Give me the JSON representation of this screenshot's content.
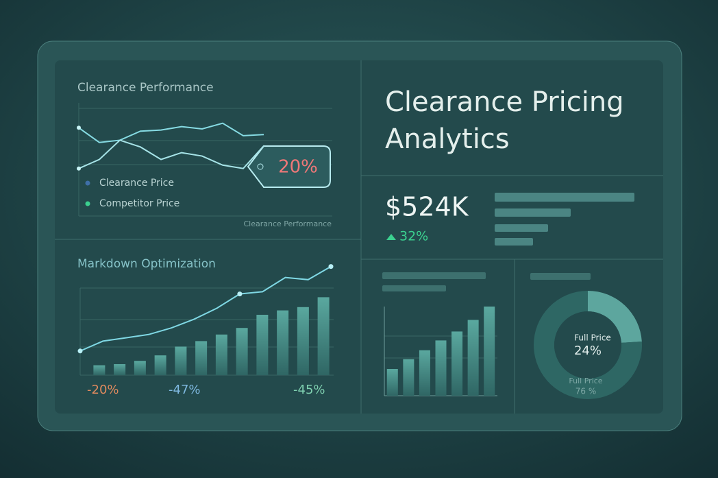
{
  "title": "Clearance Pricing Analytics",
  "kpi": {
    "value": "$524K",
    "change": "32%"
  },
  "chart_data": [
    {
      "type": "line",
      "title": "Clearance Performance",
      "footer": "Clearance Performance",
      "annotation": "20%",
      "categories": [
        null,
        null,
        null,
        null,
        null,
        null,
        null,
        null,
        null,
        null
      ],
      "series": [
        {
          "name": "Clearance Price",
          "color": "#86dbe3",
          "marker_color": "#3f6fa8",
          "values": [
            78,
            65,
            67,
            75,
            76,
            79,
            77,
            82,
            71,
            72
          ]
        },
        {
          "name": "Competitor Price",
          "color": "#a7e4e8",
          "marker_color": "#3bd08f",
          "values": [
            42,
            50,
            67,
            61,
            50,
            56,
            53,
            45,
            42,
            62
          ]
        }
      ],
      "ylim": [
        0,
        100
      ]
    },
    {
      "type": "combo",
      "title": "Markdown Optimization",
      "annotations": [
        "-20%",
        "-47%",
        "-45%"
      ],
      "categories": [
        null,
        null,
        null,
        null,
        null,
        null,
        null,
        null,
        null,
        null,
        null,
        null
      ],
      "series": [
        {
          "color": "#4f9890",
          "values": [
            9,
            10,
            13,
            18,
            26,
            31,
            37,
            43,
            55,
            59,
            62,
            71
          ]
        },
        {
          "color": "#7fd8e4",
          "values": [
            22,
            31,
            34,
            37,
            43,
            51,
            61,
            74,
            76,
            89,
            87,
            99
          ]
        }
      ],
      "ylim": [
        0,
        100
      ]
    },
    {
      "type": "bar",
      "categories": [
        null,
        null,
        null,
        null,
        null,
        null,
        null
      ],
      "values": [
        30,
        41,
        51,
        62,
        72,
        85,
        100
      ],
      "color": "#4f9890",
      "ylim": [
        0,
        100
      ]
    },
    {
      "type": "pie",
      "categories": [
        "Full Price",
        "Full Price"
      ],
      "values": [
        24,
        76
      ],
      "value_labels": [
        "24%",
        "76 %"
      ],
      "colors": [
        "#5da69e",
        "#2e6764"
      ]
    }
  ]
}
